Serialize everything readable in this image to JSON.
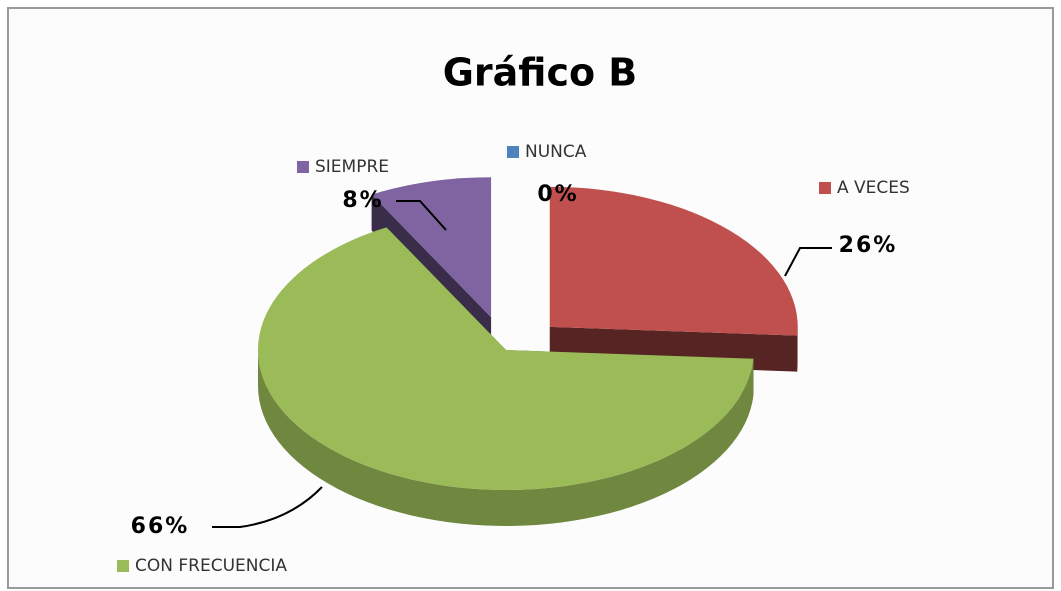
{
  "chart_data": {
    "type": "pie",
    "title": "Gráfico B",
    "categories": [
      "NUNCA",
      "A VECES",
      "CON FRECUENCIA",
      "SIEMPRE"
    ],
    "values": [
      0,
      26,
      66,
      8
    ],
    "value_labels": [
      "0%",
      "26%",
      "66%",
      "8%"
    ],
    "colors": [
      "#4f81bd",
      "#c0504d",
      "#9bbb59",
      "#8064a2"
    ]
  }
}
